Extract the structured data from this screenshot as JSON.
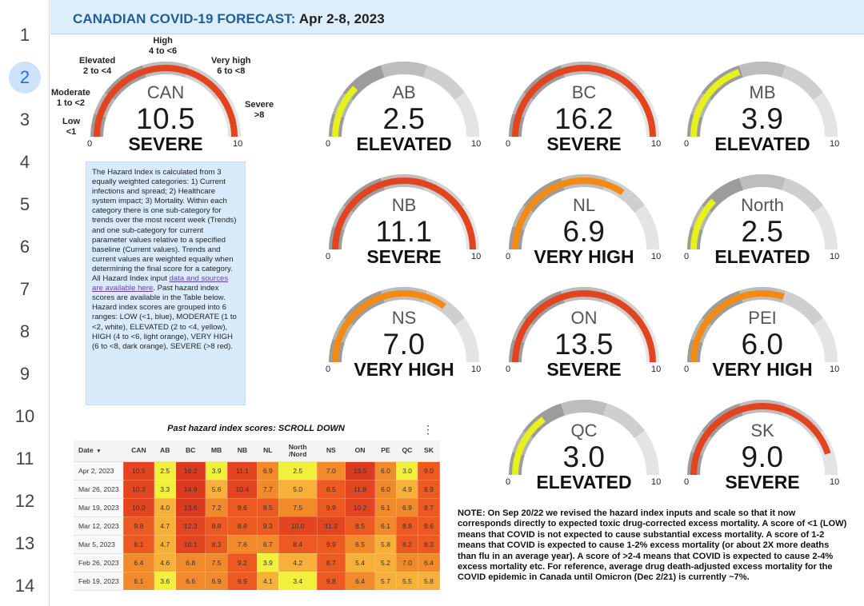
{
  "header": {
    "title_prefix": "CANADIAN COVID-19 FORECAST:",
    "title_dates": "Apr 2-8, 2023"
  },
  "row_numbers": [
    "1",
    "2",
    "3",
    "4",
    "5",
    "6",
    "7",
    "8",
    "9",
    "10",
    "11",
    "12",
    "13",
    "14"
  ],
  "selected_row": "2",
  "scale_labels": {
    "low": "Low\n<1",
    "moderate": "Moderate\n1 to <2",
    "elevated": "Elevated\n2 to <4",
    "high": "High\n4 to <6",
    "very_high": "Very high\n6 to <8",
    "severe": "Severe\n>8"
  },
  "gauge_range": {
    "min": "0",
    "max": "10",
    "min_value": 0,
    "max_value": 10
  },
  "gauges": [
    {
      "region": "CAN",
      "value": "10.5",
      "level": "SEVERE",
      "score": 10.5,
      "color": "#e2441f"
    },
    {
      "region": "AB",
      "value": "2.5",
      "level": "ELEVATED",
      "score": 2.5,
      "color": "#e6f21a"
    },
    {
      "region": "BC",
      "value": "16.2",
      "level": "SEVERE",
      "score": 16.2,
      "color": "#e2441f"
    },
    {
      "region": "MB",
      "value": "3.9",
      "level": "ELEVATED",
      "score": 3.9,
      "color": "#e6f21a"
    },
    {
      "region": "NB",
      "value": "11.1",
      "level": "SEVERE",
      "score": 11.1,
      "color": "#e2441f"
    },
    {
      "region": "NL",
      "value": "6.9",
      "level": "VERY HIGH",
      "score": 6.9,
      "color": "#f38a16"
    },
    {
      "region": "North",
      "value": "2.5",
      "level": "ELEVATED",
      "score": 2.5,
      "color": "#e6f21a"
    },
    {
      "region": "NS",
      "value": "7.0",
      "level": "VERY HIGH",
      "score": 7.0,
      "color": "#f38a16"
    },
    {
      "region": "ON",
      "value": "13.5",
      "level": "SEVERE",
      "score": 13.5,
      "color": "#e2441f"
    },
    {
      "region": "PEI",
      "value": "6.0",
      "level": "VERY HIGH",
      "score": 6.0,
      "color": "#f38a16"
    },
    {
      "region": "QC",
      "value": "3.0",
      "level": "ELEVATED",
      "score": 3.0,
      "color": "#e6f21a"
    },
    {
      "region": "SK",
      "value": "9.0",
      "level": "SEVERE",
      "score": 9.0,
      "color": "#e2441f"
    }
  ],
  "info": {
    "text_before_link": "The Hazard Index is calculated from 3 equally weighted categories: 1) Current infections and spread; 2) Healthcare system impact; 3) Mortality. Within each category there is one sub-category for trends over the most recent week (Trends) and one sub-category for current parameter values relative to a specified baseline (Current values). Trends and current values are weighted equally when determining the final score for a category. All Hazard Index input ",
    "link_text": "data and sources are available here",
    "text_after_link": ". Past hazard index scores are available in the Table below. Hazard index scores are grouped into 6 ranges: LOW (<1, blue), MODERATE (1 to <2, white), ELEVATED (2 to <4, yellow), HIGH (4 to <6, light orange), VERY HIGH (6 to <8, dark orange), SEVERE (>8 red)."
  },
  "table": {
    "title": "Past hazard index scores: SCROLL DOWN",
    "date_header": "Date",
    "sort_glyph": "▾",
    "headers": [
      "CAN",
      "AB",
      "BC",
      "MB",
      "NB",
      "NL",
      "North\n/Nord",
      "NS",
      "ON",
      "PE",
      "QC",
      "SK"
    ],
    "rows": [
      {
        "date": "Apr 2, 2023",
        "values": [
          "10.5",
          "2.5",
          "16.2",
          "3.9",
          "11.1",
          "6.9",
          "2.5",
          "7.0",
          "13.5",
          "6.0",
          "3.0",
          "9.0"
        ]
      },
      {
        "date": "Mar 26, 2023",
        "values": [
          "10.3",
          "3.3",
          "14.9",
          "5.6",
          "10.4",
          "7.7",
          "5.0",
          "8.5",
          "11.8",
          "6.0",
          "4.9",
          "8.9"
        ]
      },
      {
        "date": "Mar 19, 2023",
        "values": [
          "10.0",
          "4.0",
          "13.6",
          "7.2",
          "9.6",
          "8.5",
          "7.5",
          "9.9",
          "10.2",
          "6.1",
          "6.9",
          "8.7"
        ]
      },
      {
        "date": "Mar 12, 2023",
        "values": [
          "9.8",
          "4.7",
          "12.3",
          "8.8",
          "8.8",
          "9.3",
          "10.0",
          "11.3",
          "8.5",
          "6.1",
          "8.8",
          "8.6"
        ]
      },
      {
        "date": "Mar 5, 2023",
        "values": [
          "8.1",
          "4.7",
          "10.1",
          "8.3",
          "7.6",
          "6.7",
          "8.4",
          "9.9",
          "6.5",
          "5.8",
          "8.2",
          "8.3"
        ]
      },
      {
        "date": "Feb 26, 2023",
        "values": [
          "6.4",
          "4.6",
          "6.8",
          "7.5",
          "9.2",
          "3.9",
          "4.2",
          "8.7",
          "5.4",
          "5.2",
          "7.0",
          "6.4"
        ]
      },
      {
        "date": "Feb 19, 2023",
        "values": [
          "6.1",
          "3.6",
          "6.6",
          "6.9",
          "9.9",
          "4.1",
          "3.4",
          "9.8",
          "6.4",
          "5.7",
          "5.5",
          "5.8"
        ]
      }
    ]
  },
  "note": "NOTE: On Sep 20/22 we revised the hazard index inputs and scale so that it now corresponds directly to expected toxic drug-corrected excess mortality. A score of <1 (LOW) means that COVID is not expected to cause substantial excess mortality. A score of 1-2 means that COVID is expected to cause 1-2% excess mortality (or about 2X more deaths than flu in an average year). A score of >2-4 means that COVID is expected to cause 2-4% excess mortality etc. For reference, average drug death-adjusted excess mortality for the COVID epidemic in Canada until Omicron (Dec 2/21) is currently ~7%."
}
